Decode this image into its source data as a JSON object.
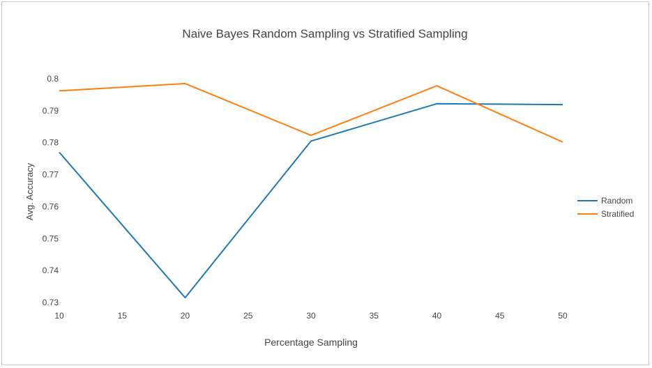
{
  "chart_data": {
    "type": "line",
    "title": "Naive Bayes Random Sampling vs Stratified Sampling",
    "xlabel": "Percentage Sampling",
    "ylabel": "Avg. Accuracy",
    "x_ticks": [
      10,
      15,
      20,
      25,
      30,
      35,
      40,
      45,
      50
    ],
    "y_ticks": [
      0.73,
      0.74,
      0.75,
      0.76,
      0.77,
      0.78,
      0.79,
      0.8
    ],
    "y_tick_labels": [
      "0.73",
      "0.74",
      "0.75",
      "0.76",
      "0.77",
      "0.78",
      "0.79",
      "0.8"
    ],
    "xlim": [
      10,
      50
    ],
    "ylim": [
      0.73,
      0.8
    ],
    "grid": false,
    "legend_position": "right",
    "x": [
      10,
      20,
      30,
      40,
      50
    ],
    "series": [
      {
        "name": "Random",
        "color": "#1f77b4",
        "values": [
          0.777,
          0.7315,
          0.7805,
          0.7922,
          0.7919
        ]
      },
      {
        "name": "Stratified",
        "color": "#ff7f0e",
        "values": [
          0.7962,
          0.7985,
          0.7823,
          0.7978,
          0.7802
        ]
      }
    ]
  }
}
